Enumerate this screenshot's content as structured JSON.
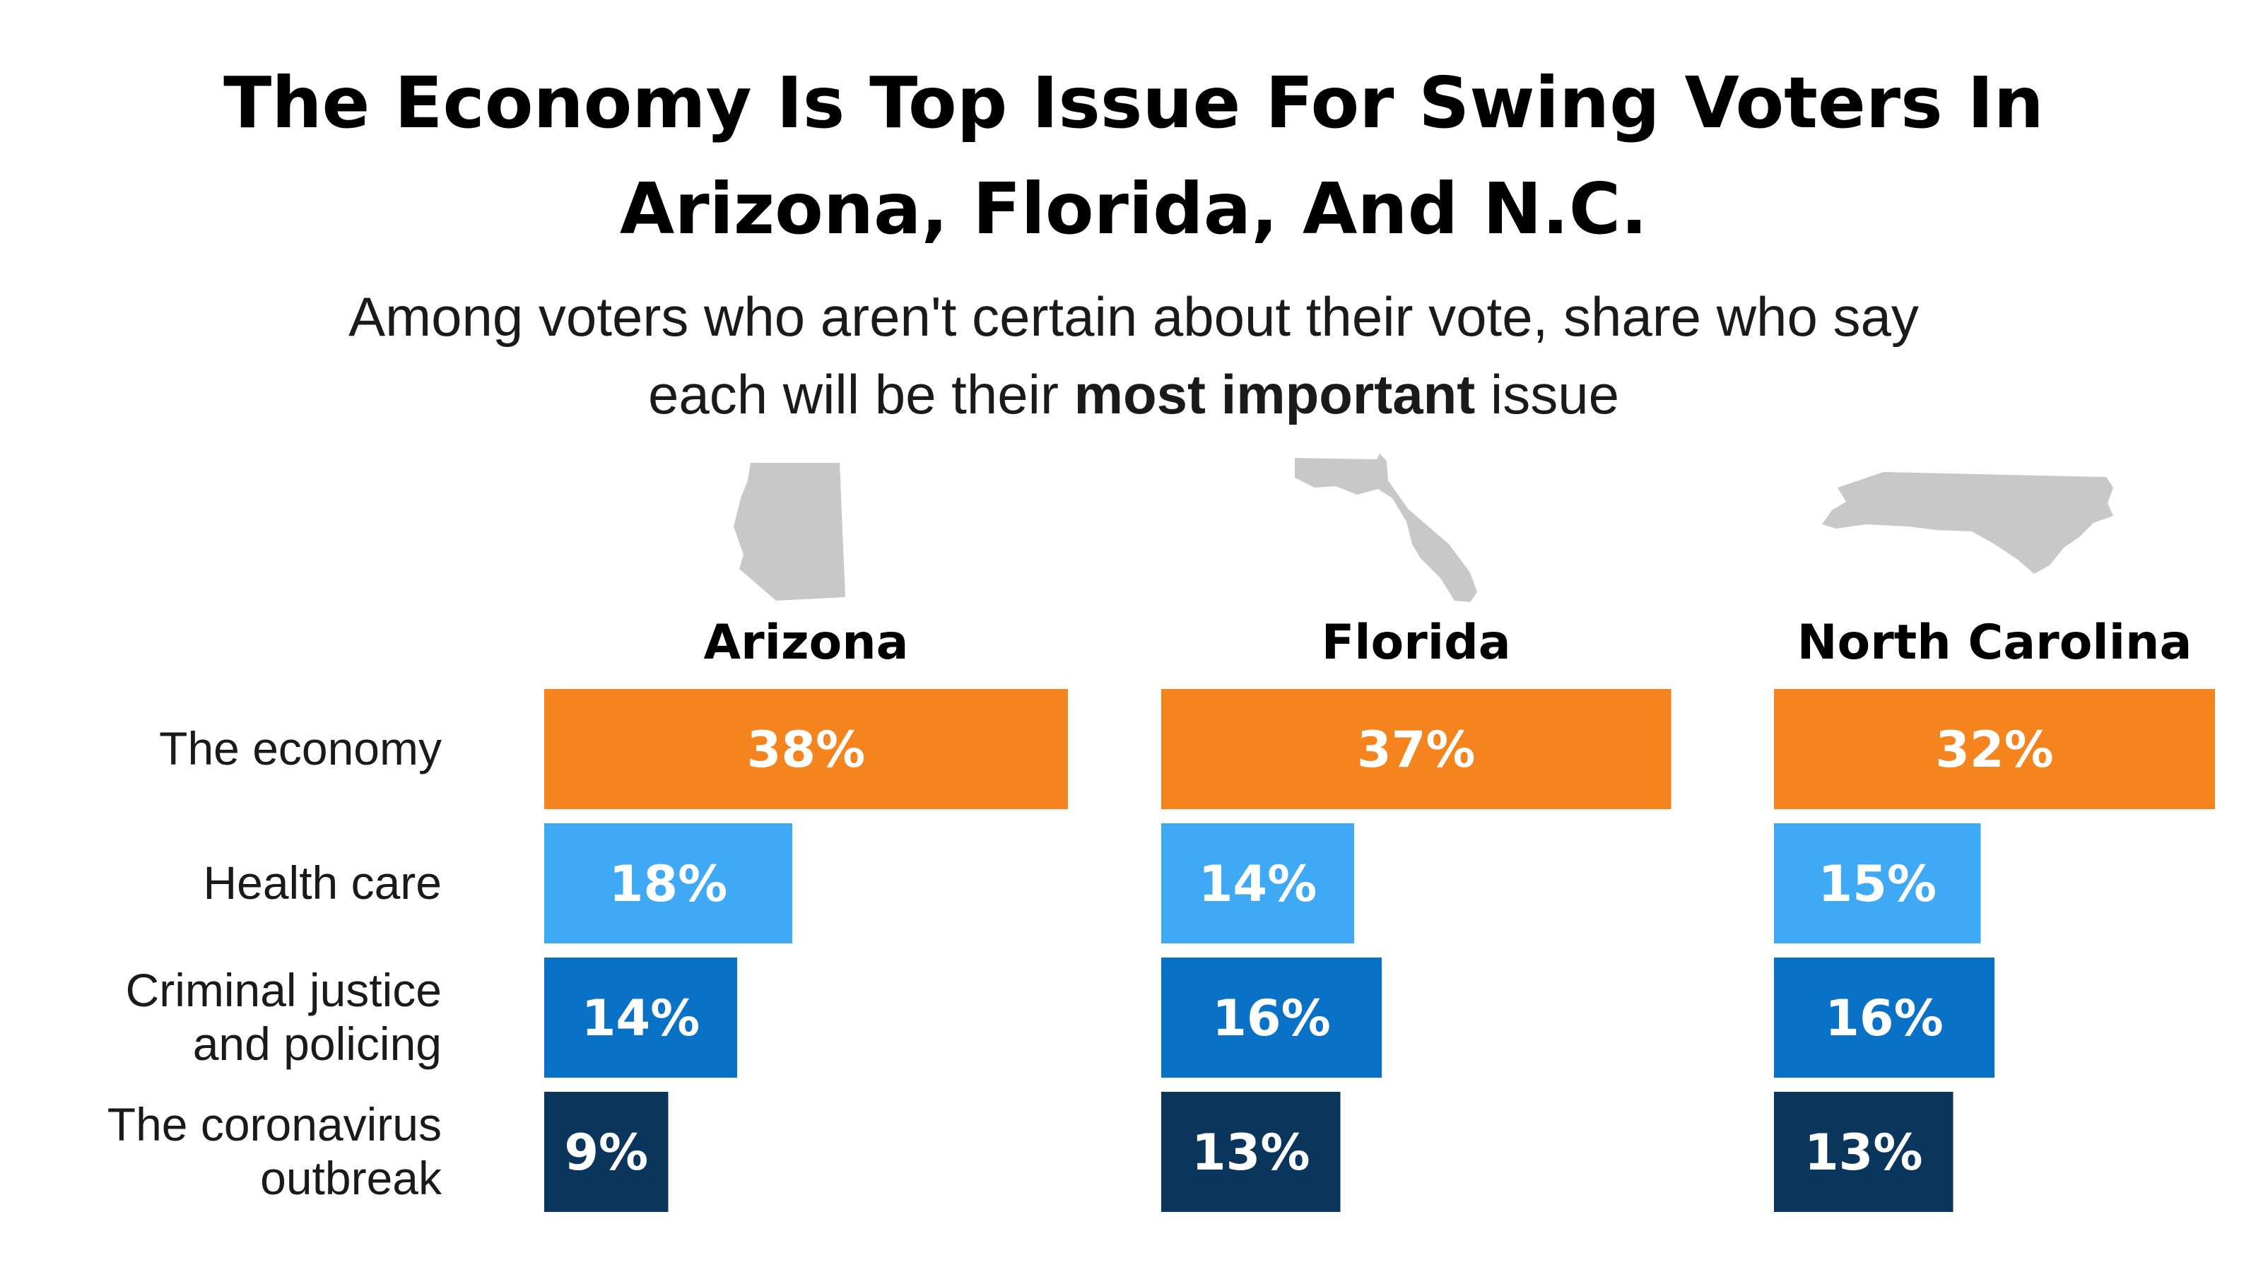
{
  "chart_data": {
    "type": "bar",
    "title": [
      "The Economy Is Top Issue For Swing Voters In",
      "Arizona, Florida, And N.C."
    ],
    "subtitle": {
      "line1": "Among voters who aren't certain about their vote, share who say",
      "line2_before": "each will be their ",
      "line2_bold": "most important",
      "line2_after": " issue"
    },
    "categories": [
      [
        "The economy"
      ],
      [
        "Health care"
      ],
      [
        "Criminal justice",
        "and policing"
      ],
      [
        "The coronavirus",
        "outbreak"
      ]
    ],
    "category_colors": [
      "#f5841f",
      "#3fa9f5",
      "#0a72c6",
      "#0a365e"
    ],
    "value_unit": "%",
    "panels": [
      {
        "name": "Arizona",
        "shape": "arizona-shape",
        "values": [
          38,
          18,
          14,
          9
        ]
      },
      {
        "name": "Florida",
        "shape": "florida-shape",
        "values": [
          37,
          14,
          16,
          13
        ]
      },
      {
        "name": "North Carolina",
        "shape": "north-carolina-shape",
        "values": [
          32,
          15,
          16,
          13
        ]
      }
    ]
  }
}
